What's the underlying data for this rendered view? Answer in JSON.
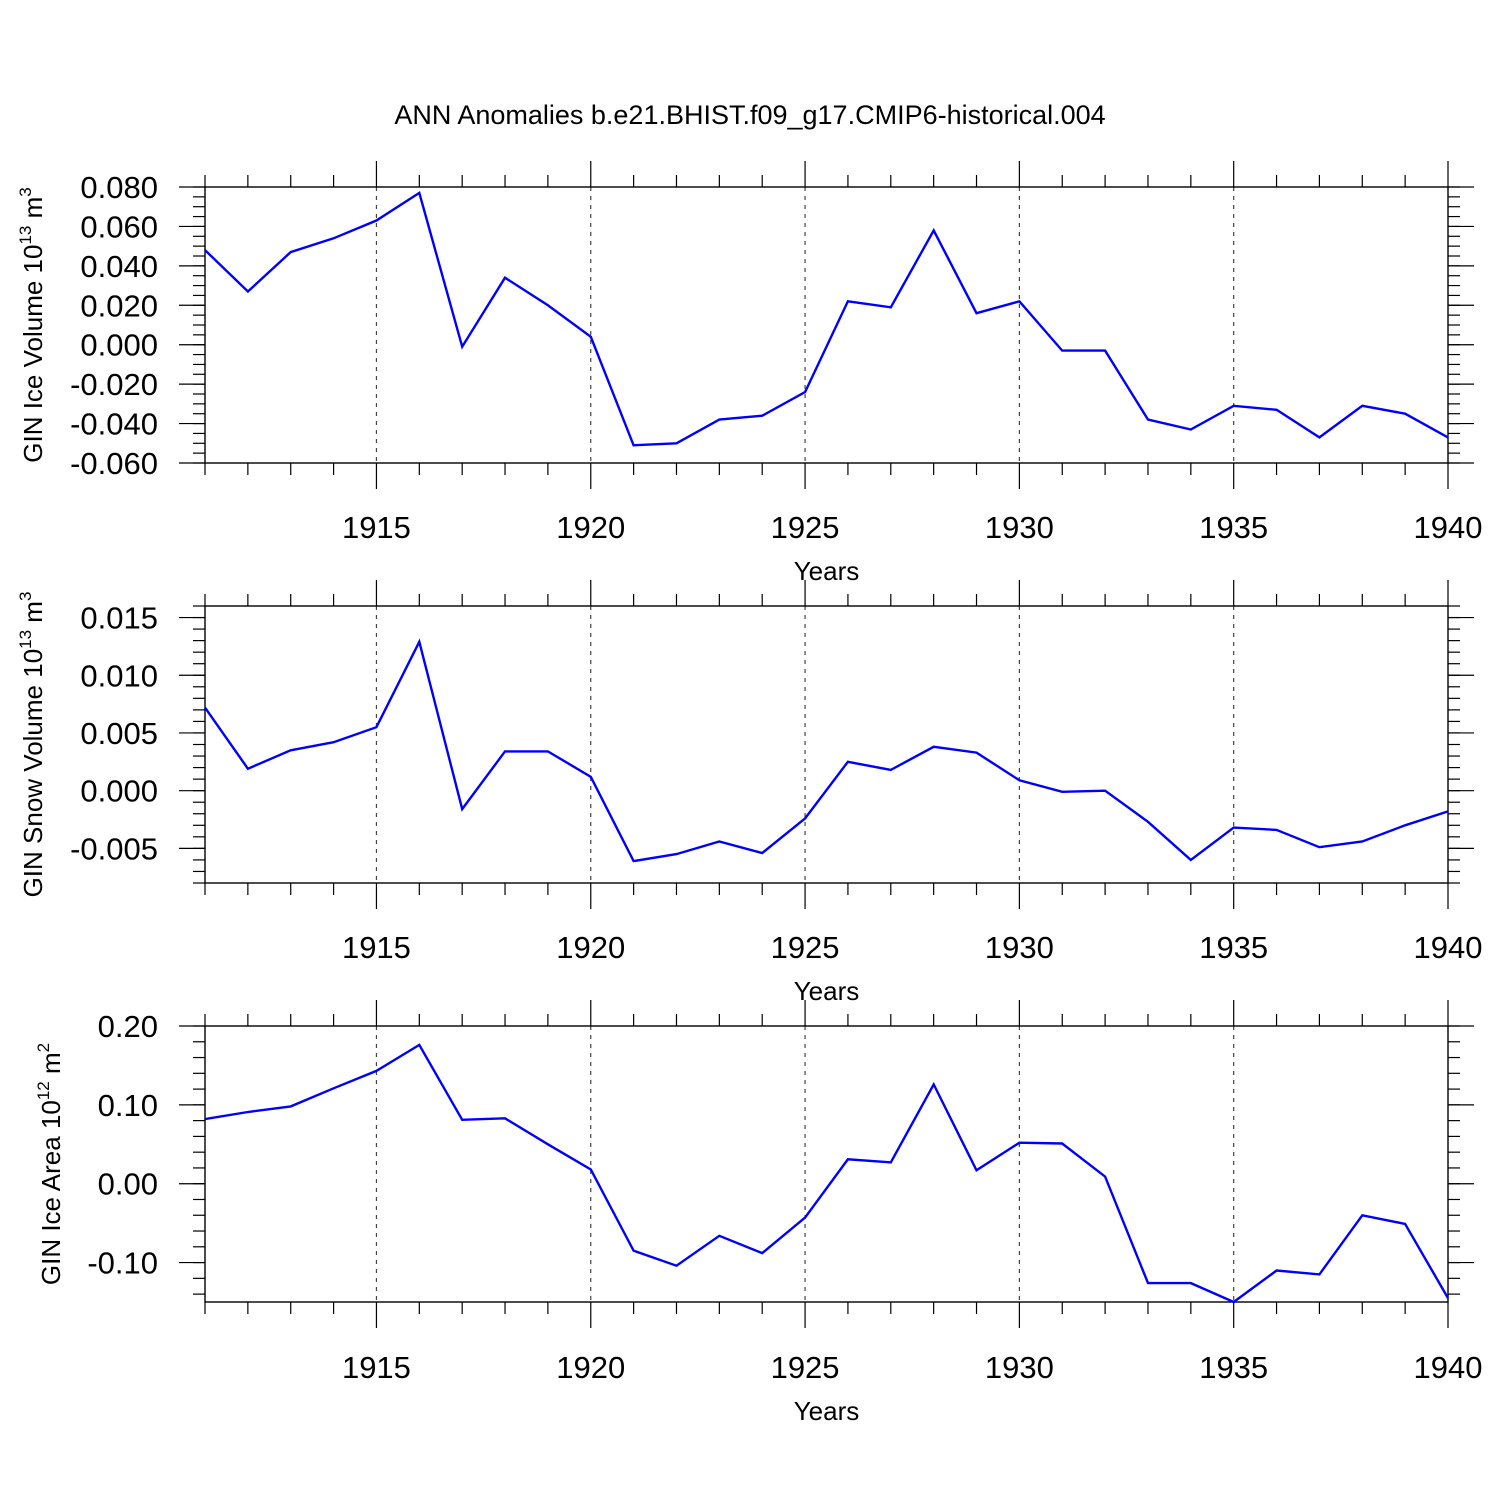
{
  "title": "ANN Anomalies b.e21.BHIST.f09_g17.CMIP6-historical.004",
  "series_color": "#0000ff",
  "chart_data": [
    {
      "type": "line",
      "name": "ice-volume",
      "ylabel_main": "GIN Ice Volume 10",
      "ylabel_sup": "13",
      "ylabel_unit": " m",
      "ylabel_unit_sup": "3",
      "xlabel": "Years",
      "xlim": [
        1911,
        1940
      ],
      "ylim": [
        -0.06,
        0.08
      ],
      "yticks": [
        -0.06,
        -0.04,
        -0.02,
        0.0,
        0.02,
        0.04,
        0.06,
        0.08
      ],
      "ytick_labels": [
        "-0.060",
        "-0.040",
        "-0.020",
        "0.000",
        "0.020",
        "0.040",
        "0.060",
        "0.080"
      ],
      "yminor_step": 0.005,
      "xticks": [
        1915,
        1920,
        1925,
        1930,
        1935,
        1940
      ],
      "xtick_labels": [
        "1915",
        "1920",
        "1925",
        "1930",
        "1935",
        "1940"
      ],
      "grid_x": [
        1915,
        1920,
        1925,
        1930,
        1935
      ],
      "x": [
        1911,
        1912,
        1913,
        1914,
        1915,
        1916,
        1917,
        1918,
        1919,
        1920,
        1921,
        1922,
        1923,
        1924,
        1925,
        1926,
        1927,
        1928,
        1929,
        1930,
        1931,
        1932,
        1933,
        1934,
        1935,
        1936,
        1937,
        1938,
        1939,
        1940
      ],
      "values": [
        0.048,
        0.027,
        0.047,
        0.054,
        0.063,
        0.077,
        -0.001,
        0.034,
        0.02,
        0.004,
        -0.051,
        -0.05,
        -0.038,
        -0.036,
        -0.024,
        0.022,
        0.019,
        0.058,
        0.016,
        0.022,
        -0.003,
        -0.003,
        -0.038,
        -0.043,
        -0.031,
        -0.033,
        -0.047,
        -0.031,
        -0.035,
        -0.047
      ]
    },
    {
      "type": "line",
      "name": "snow-volume",
      "ylabel_main": "GIN Snow Volume 10",
      "ylabel_sup": "13",
      "ylabel_unit": " m",
      "ylabel_unit_sup": "3",
      "xlabel": "Years",
      "xlim": [
        1911,
        1940
      ],
      "ylim": [
        -0.008,
        0.016
      ],
      "yticks": [
        -0.005,
        0.0,
        0.005,
        0.01,
        0.015
      ],
      "ytick_labels": [
        "-0.005",
        "0.000",
        "0.005",
        "0.010",
        "0.015"
      ],
      "yminor_step": 0.001,
      "xticks": [
        1915,
        1920,
        1925,
        1930,
        1935,
        1940
      ],
      "xtick_labels": [
        "1915",
        "1920",
        "1925",
        "1930",
        "1935",
        "1940"
      ],
      "grid_x": [
        1915,
        1920,
        1925,
        1930,
        1935
      ],
      "x": [
        1911,
        1912,
        1913,
        1914,
        1915,
        1916,
        1917,
        1918,
        1919,
        1920,
        1921,
        1922,
        1923,
        1924,
        1925,
        1926,
        1927,
        1928,
        1929,
        1930,
        1931,
        1932,
        1933,
        1934,
        1935,
        1936,
        1937,
        1938,
        1939,
        1940
      ],
      "values": [
        0.0072,
        0.0019,
        0.0035,
        0.0042,
        0.0055,
        0.0129,
        -0.0016,
        0.0034,
        0.0034,
        0.0012,
        -0.0061,
        -0.0055,
        -0.0044,
        -0.0054,
        -0.0024,
        0.0025,
        0.0018,
        0.0038,
        0.0033,
        0.0009,
        -0.0001,
        0.0,
        -0.0027,
        -0.006,
        -0.0032,
        -0.0034,
        -0.0049,
        -0.0044,
        -0.003,
        -0.0018
      ]
    },
    {
      "type": "line",
      "name": "ice-area",
      "ylabel_main": "GIN Ice Area 10",
      "ylabel_sup": "12",
      "ylabel_unit": " m",
      "ylabel_unit_sup": "2",
      "xlabel": "Years",
      "xlim": [
        1911,
        1940
      ],
      "ylim": [
        -0.15,
        0.2
      ],
      "yticks": [
        -0.1,
        0.0,
        0.1,
        0.2
      ],
      "ytick_labels": [
        "-0.10",
        "0.00",
        "0.10",
        "0.20"
      ],
      "yminor_step": 0.02,
      "xticks": [
        1915,
        1920,
        1925,
        1930,
        1935,
        1940
      ],
      "xtick_labels": [
        "1915",
        "1920",
        "1925",
        "1930",
        "1935",
        "1940"
      ],
      "grid_x": [
        1915,
        1920,
        1925,
        1930,
        1935
      ],
      "x": [
        1911,
        1912,
        1913,
        1914,
        1915,
        1916,
        1917,
        1918,
        1919,
        1920,
        1921,
        1922,
        1923,
        1924,
        1925,
        1926,
        1927,
        1928,
        1929,
        1930,
        1931,
        1932,
        1933,
        1934,
        1935,
        1936,
        1937,
        1938,
        1939,
        1940
      ],
      "values": [
        0.082,
        0.091,
        0.098,
        0.121,
        0.143,
        0.176,
        0.081,
        0.083,
        0.05,
        0.018,
        -0.085,
        -0.104,
        -0.066,
        -0.088,
        -0.043,
        0.031,
        0.027,
        0.126,
        0.017,
        0.052,
        0.051,
        0.009,
        -0.126,
        -0.126,
        -0.15,
        -0.11,
        -0.115,
        -0.04,
        -0.051,
        -0.145
      ]
    }
  ]
}
